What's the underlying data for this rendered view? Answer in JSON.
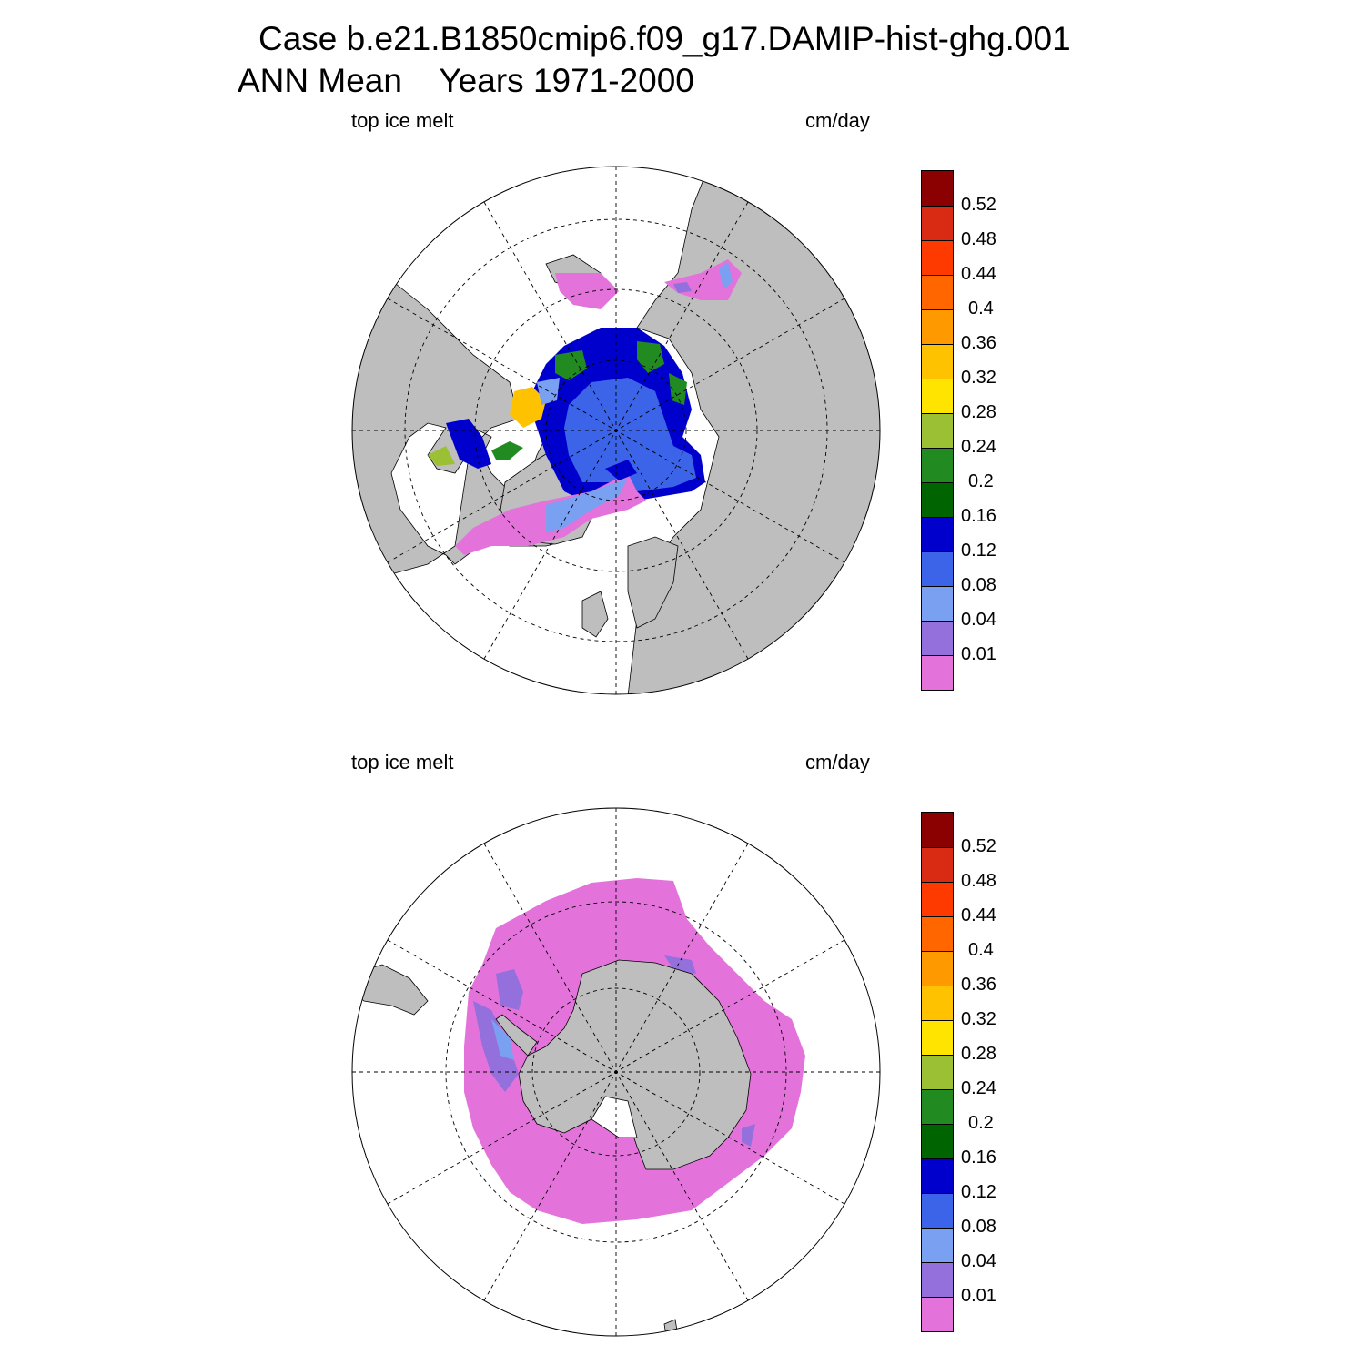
{
  "title": {
    "line1": "Case b.e21.B1850cmip6.f09_g17.DAMIP-hist-ghg.001",
    "line2": "ANN Mean    Years 1971-2000"
  },
  "panels": [
    {
      "hemisphere": "north",
      "variable_label": "top ice melt",
      "units_label": "cm/day"
    },
    {
      "hemisphere": "south",
      "variable_label": "top ice melt",
      "units_label": "cm/day"
    }
  ],
  "colorbar": {
    "levels": [
      "0.52",
      "0.48",
      "0.44",
      "0.4",
      "0.36",
      "0.32",
      "0.28",
      "0.24",
      "0.2",
      "0.16",
      "0.12",
      "0.08",
      "0.04",
      "0.01"
    ],
    "colors": [
      "#8b0000",
      "#d92b14",
      "#ff3a00",
      "#ff6600",
      "#ff9900",
      "#ffc200",
      "#ffe400",
      "#9bc034",
      "#218b21",
      "#006400",
      "#0000cd",
      "#3c64e8",
      "#7aa0f2",
      "#9370db",
      "#e373db"
    ]
  },
  "styles": {
    "land_color": "#bebebe",
    "ocean_color": "#ffffff"
  }
}
